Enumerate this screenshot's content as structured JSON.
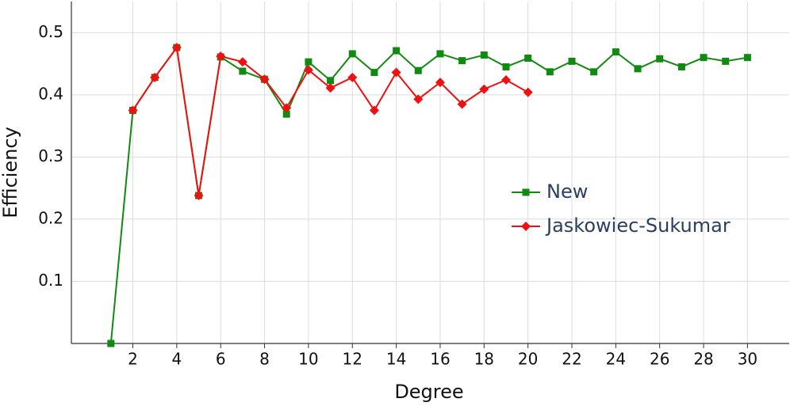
{
  "chart_data": {
    "type": "line",
    "x_label": "Degree",
    "y_label": "Efficiency",
    "x": [
      1,
      2,
      3,
      4,
      5,
      6,
      7,
      8,
      9,
      10,
      11,
      12,
      13,
      14,
      15,
      16,
      17,
      18,
      19,
      20,
      21,
      22,
      23,
      24,
      25,
      26,
      27,
      28,
      29,
      30
    ],
    "series": [
      {
        "name": "New",
        "color": "#108a10",
        "marker": "square",
        "values": [
          0,
          0.375,
          0.428,
          0.476,
          0.238,
          0.461,
          0.438,
          0.425,
          0.369,
          0.453,
          0.423,
          0.466,
          0.436,
          0.471,
          0.439,
          0.466,
          0.455,
          0.464,
          0.445,
          0.459,
          0.437,
          0.454,
          0.437,
          0.469,
          0.442,
          0.458,
          0.445,
          0.46,
          0.454,
          0.46
        ]
      },
      {
        "name": "Jaskowiec-Sukumar",
        "color": "#f01010",
        "marker": "diamond",
        "values": [
          null,
          0.375,
          0.428,
          0.476,
          0.238,
          0.462,
          0.453,
          0.425,
          0.379,
          0.44,
          0.411,
          0.428,
          0.375,
          0.436,
          0.393,
          0.42,
          0.385,
          0.409,
          0.424,
          0.404,
          null,
          null,
          null,
          null,
          null,
          null,
          null,
          null,
          null,
          null
        ]
      }
    ],
    "xlim": [
      -0.8,
      31.9
    ],
    "xticks": [
      2,
      4,
      6,
      8,
      10,
      12,
      14,
      16,
      18,
      20,
      22,
      24,
      26,
      28,
      30
    ],
    "ylim": [
      0,
      0.55
    ],
    "yticks": [
      0.1,
      0.2,
      0.3,
      0.4,
      0.5
    ],
    "grid": true,
    "legend_position": "right"
  }
}
